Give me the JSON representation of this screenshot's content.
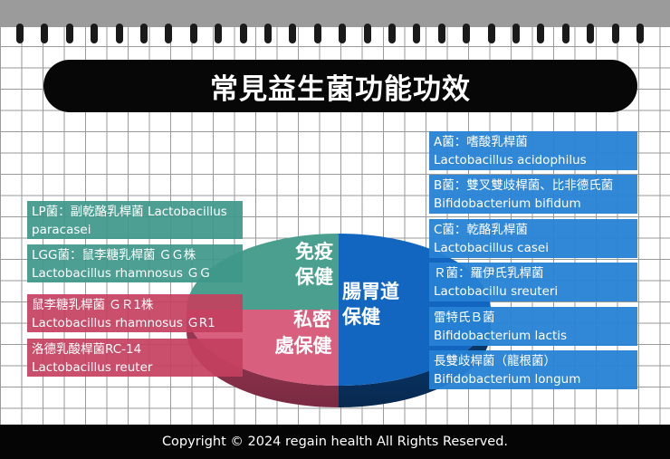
{
  "title": "常見益生菌功能功效",
  "pie": {
    "segments": [
      {
        "label_line1": "免疫",
        "label_line2": "保健",
        "color": "#4a9f8e"
      },
      {
        "label_line1": "私密",
        "label_line2": "處保健",
        "color": "#d95f7e"
      },
      {
        "label_line1": "腸胃道",
        "label_line2": "保健",
        "color": "#1366c0"
      }
    ]
  },
  "left_groups": {
    "immune": [
      {
        "line1": "LP菌：副乾酪乳桿菌 Lactobacillus",
        "line2": "paracasei"
      },
      {
        "line1": "LGG菌：鼠李糖乳桿菌 ＧＧ株",
        "line2": "Lactobacillus rhamnosus ＧＧ"
      }
    ],
    "intimate": [
      {
        "line1": "鼠李糖乳桿菌 ＧＲ1株",
        "line2": "Lactobacillus rhamnosus ＧR1"
      },
      {
        "line1": "洛德乳酸桿菌RC-14",
        "line2": "Lactobacillus reuter"
      }
    ]
  },
  "right_group": [
    {
      "line1": "A菌：嗜酸乳桿菌",
      "line2": "Lactobacillus acidophilus"
    },
    {
      "line1": "B菌：雙叉雙歧桿菌、比非德氏菌",
      "line2": "Bifidobacterium bifidum"
    },
    {
      "line1": "C菌：乾酪乳桿菌",
      "line2": "Lactobacillus casei"
    },
    {
      "line1": "Ｒ菌：羅伊氏乳桿菌",
      "line2": "Lactobacillu sreuteri"
    },
    {
      "line1": "雷特氏Ｂ菌",
      "line2": "Bifidobacterium lactis"
    },
    {
      "line1": "長雙歧桿菌（龍根菌）",
      "line2": "Bifidobacterium longum"
    }
  ],
  "footer": "Copyright © 2024 regain health All Rights Reserved."
}
